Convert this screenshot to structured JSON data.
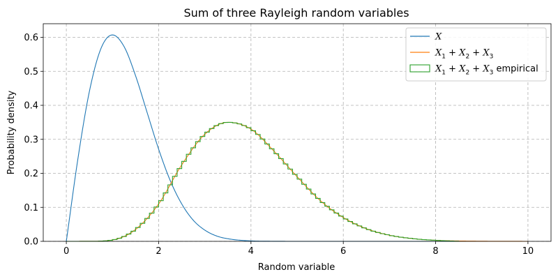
{
  "chart_data": {
    "type": "line",
    "title": "Sum of three Rayleigh random variables",
    "xlabel": "Random variable",
    "ylabel": "Probability density",
    "xlim": [
      -0.5,
      10.5
    ],
    "ylim": [
      0,
      0.64
    ],
    "xticks": [
      0,
      2,
      4,
      6,
      8,
      10
    ],
    "yticks": [
      0.0,
      0.1,
      0.2,
      0.3,
      0.4,
      0.5,
      0.6
    ],
    "xtick_labels": [
      "0",
      "2",
      "4",
      "6",
      "8",
      "10"
    ],
    "ytick_labels": [
      "0.0",
      "0.1",
      "0.2",
      "0.3",
      "0.4",
      "0.5",
      "0.6"
    ],
    "grid": true,
    "grid_style": "dashed",
    "legend_position": "top-right",
    "series": [
      {
        "name": "X",
        "legend_main": "X",
        "kind": "line",
        "color": "#1f77b4",
        "x": [
          0,
          0.25,
          0.5,
          0.75,
          1.0,
          1.25,
          1.5,
          1.75,
          2.0,
          2.25,
          2.5,
          2.75,
          3.0,
          3.25,
          3.5,
          4.0,
          4.5,
          5.0,
          6.0,
          10.0
        ],
        "y": [
          0,
          0.242,
          0.441,
          0.567,
          0.607,
          0.573,
          0.487,
          0.379,
          0.271,
          0.179,
          0.11,
          0.062,
          0.033,
          0.016,
          0.0076,
          0.0013,
          0.0002,
          0.0,
          0.0,
          0.0
        ]
      },
      {
        "name": "X1 + X2 + X3",
        "legend_main": "X",
        "legend_subs": [
          "1",
          "2",
          "3"
        ],
        "legend_suffix": "",
        "kind": "line",
        "color": "#ff7f0e",
        "x": [
          0,
          0.5,
          1.0,
          1.5,
          2.0,
          2.5,
          3.0,
          3.5,
          4.0,
          4.5,
          5.0,
          5.5,
          6.0,
          6.5,
          7.0,
          7.5,
          8.0,
          9.0,
          10.0
        ],
        "y": [
          0,
          0.0001,
          0.004,
          0.035,
          0.11,
          0.225,
          0.315,
          0.35,
          0.33,
          0.265,
          0.19,
          0.12,
          0.07,
          0.037,
          0.018,
          0.008,
          0.003,
          0.0004,
          0.0
        ]
      },
      {
        "name": "X1 + X2 + X3 empirical",
        "legend_main": "X",
        "legend_subs": [
          "1",
          "2",
          "3"
        ],
        "legend_suffix": " empirical",
        "kind": "step-histogram",
        "color": "#2ca02c",
        "x": [
          0,
          0.5,
          1.0,
          1.5,
          2.0,
          2.5,
          3.0,
          3.5,
          4.0,
          4.5,
          5.0,
          5.5,
          6.0,
          6.5,
          7.0,
          7.5,
          8.0,
          8.5
        ],
        "y": [
          0,
          0.0001,
          0.004,
          0.035,
          0.11,
          0.225,
          0.315,
          0.35,
          0.33,
          0.265,
          0.19,
          0.12,
          0.07,
          0.037,
          0.018,
          0.008,
          0.003,
          0.0
        ]
      }
    ]
  }
}
